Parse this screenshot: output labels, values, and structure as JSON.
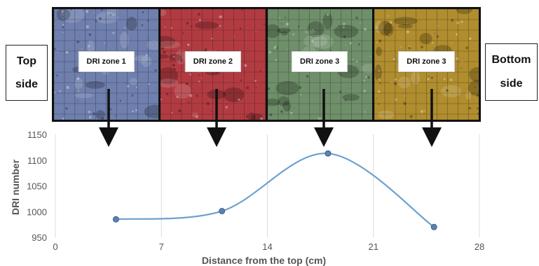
{
  "side_labels": {
    "left": [
      "Top",
      "side"
    ],
    "right": [
      "Bottom",
      "side"
    ]
  },
  "zones": [
    {
      "label": "DRI zone 1",
      "color": "#6f7fae"
    },
    {
      "label": "DRI zone 2",
      "color": "#b23b42"
    },
    {
      "label": "DRI zone 3",
      "color": "#6f8f6a"
    },
    {
      "label": "DRI zone 3",
      "color": "#b08d2e"
    }
  ],
  "chart_data": {
    "type": "line",
    "x": [
      4,
      11,
      18,
      25
    ],
    "values": [
      985,
      1001,
      1113,
      970
    ],
    "xlabel": "Distance from the top (cm)",
    "ylabel": "DRI number",
    "xlim": [
      0,
      28
    ],
    "ylim": [
      950,
      1150
    ],
    "xticks": [
      "0",
      "7",
      "14",
      "21",
      "28"
    ],
    "yticks": [
      "950",
      "1000",
      "1050",
      "1100",
      "1150"
    ],
    "line_color": "#6aa0d0",
    "marker_color": "#5b82b0",
    "grid": "vertical"
  }
}
